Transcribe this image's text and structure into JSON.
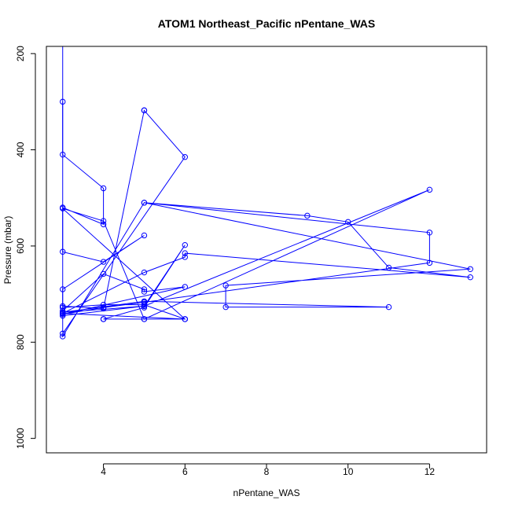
{
  "chart_data": {
    "type": "line",
    "title": "ATOM1 Northeast_Pacific nPentane_WAS",
    "xlabel": "nPentane_WAS",
    "ylabel": "Pressure (mbar)",
    "xlim": [
      2.6,
      13.4
    ],
    "ylim": [
      1030,
      185
    ],
    "y_reversed": true,
    "grid": false,
    "legend": "none",
    "series_color": "#0000ff",
    "x_ticks": [
      4,
      6,
      8,
      10,
      12
    ],
    "y_ticks": [
      200,
      400,
      600,
      800,
      1000
    ],
    "x_tick_labels": [
      "4",
      "6",
      "8",
      "10",
      "12"
    ],
    "y_tick_labels": [
      "200",
      "400",
      "600",
      "800",
      "1000"
    ],
    "series": [
      {
        "x": [
          3,
          3,
          4,
          4,
          3,
          3,
          4,
          5,
          3,
          3,
          4,
          5,
          5,
          6,
          3,
          3,
          5,
          9,
          10,
          11,
          13,
          6,
          6,
          5,
          3,
          3,
          4,
          5,
          5,
          6,
          3,
          4,
          5,
          12,
          12,
          5,
          13,
          7,
          7,
          11,
          5,
          3,
          5,
          6,
          5,
          4,
          6,
          3,
          4,
          5,
          12,
          5,
          3,
          3,
          4,
          5,
          6,
          4,
          5,
          4,
          6,
          3
        ],
        "y": [
          300,
          410,
          480,
          555,
          520,
          612,
          633,
          578,
          690,
          725,
          730,
          318,
          318,
          415,
          782,
          788,
          510,
          537,
          550,
          645,
          665,
          615,
          623,
          655,
          740,
          735,
          658,
          690,
          695,
          685,
          742,
          728,
          717,
          635,
          572,
          510,
          648,
          682,
          727,
          727,
          715,
          738,
          725,
          598,
          728,
          752,
          752,
          522,
          548,
          752,
          483,
          725,
          745,
          728,
          722,
          722,
          752,
          752,
          752,
          752,
          752,
          740
        ]
      }
    ],
    "vertical_line": {
      "x": 3,
      "y_from": 185,
      "y_to": 780
    }
  }
}
